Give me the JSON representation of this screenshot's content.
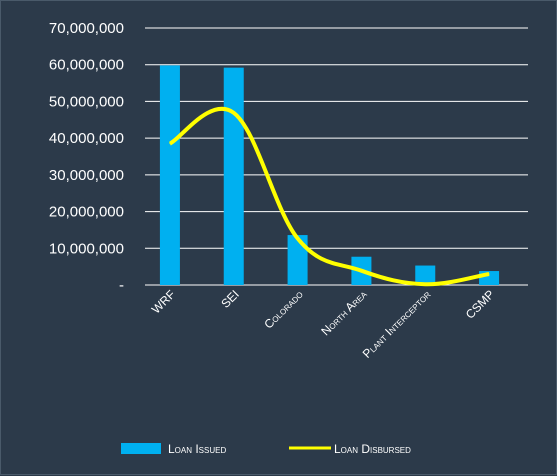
{
  "chart_data": {
    "type": "bar",
    "categories": [
      "WRF",
      "SEI",
      "Colorado",
      "North Area",
      "Plant Interceptor",
      "CSMP"
    ],
    "series": [
      {
        "name": "Loan Issued",
        "type": "bar",
        "color": "#00b0f0",
        "values": [
          59800000,
          59200000,
          13600000,
          7700000,
          5300000,
          3800000
        ]
      },
      {
        "name": "Loan Disbursed",
        "type": "line",
        "color": "#ffff00",
        "values": [
          38500000,
          46900000,
          12700000,
          3900000,
          200000,
          3000000
        ]
      }
    ],
    "y_ticks": [
      "-",
      "10,000,000",
      "20,000,000",
      "30,000,000",
      "40,000,000",
      "50,000,000",
      "60,000,000",
      "70,000,000"
    ],
    "ylim": [
      0,
      70000000
    ],
    "grid": true,
    "legend_position": "bottom"
  },
  "colors": {
    "background": "#2c3a4a",
    "gridline": "#ffffff",
    "text": "#ffffff"
  }
}
